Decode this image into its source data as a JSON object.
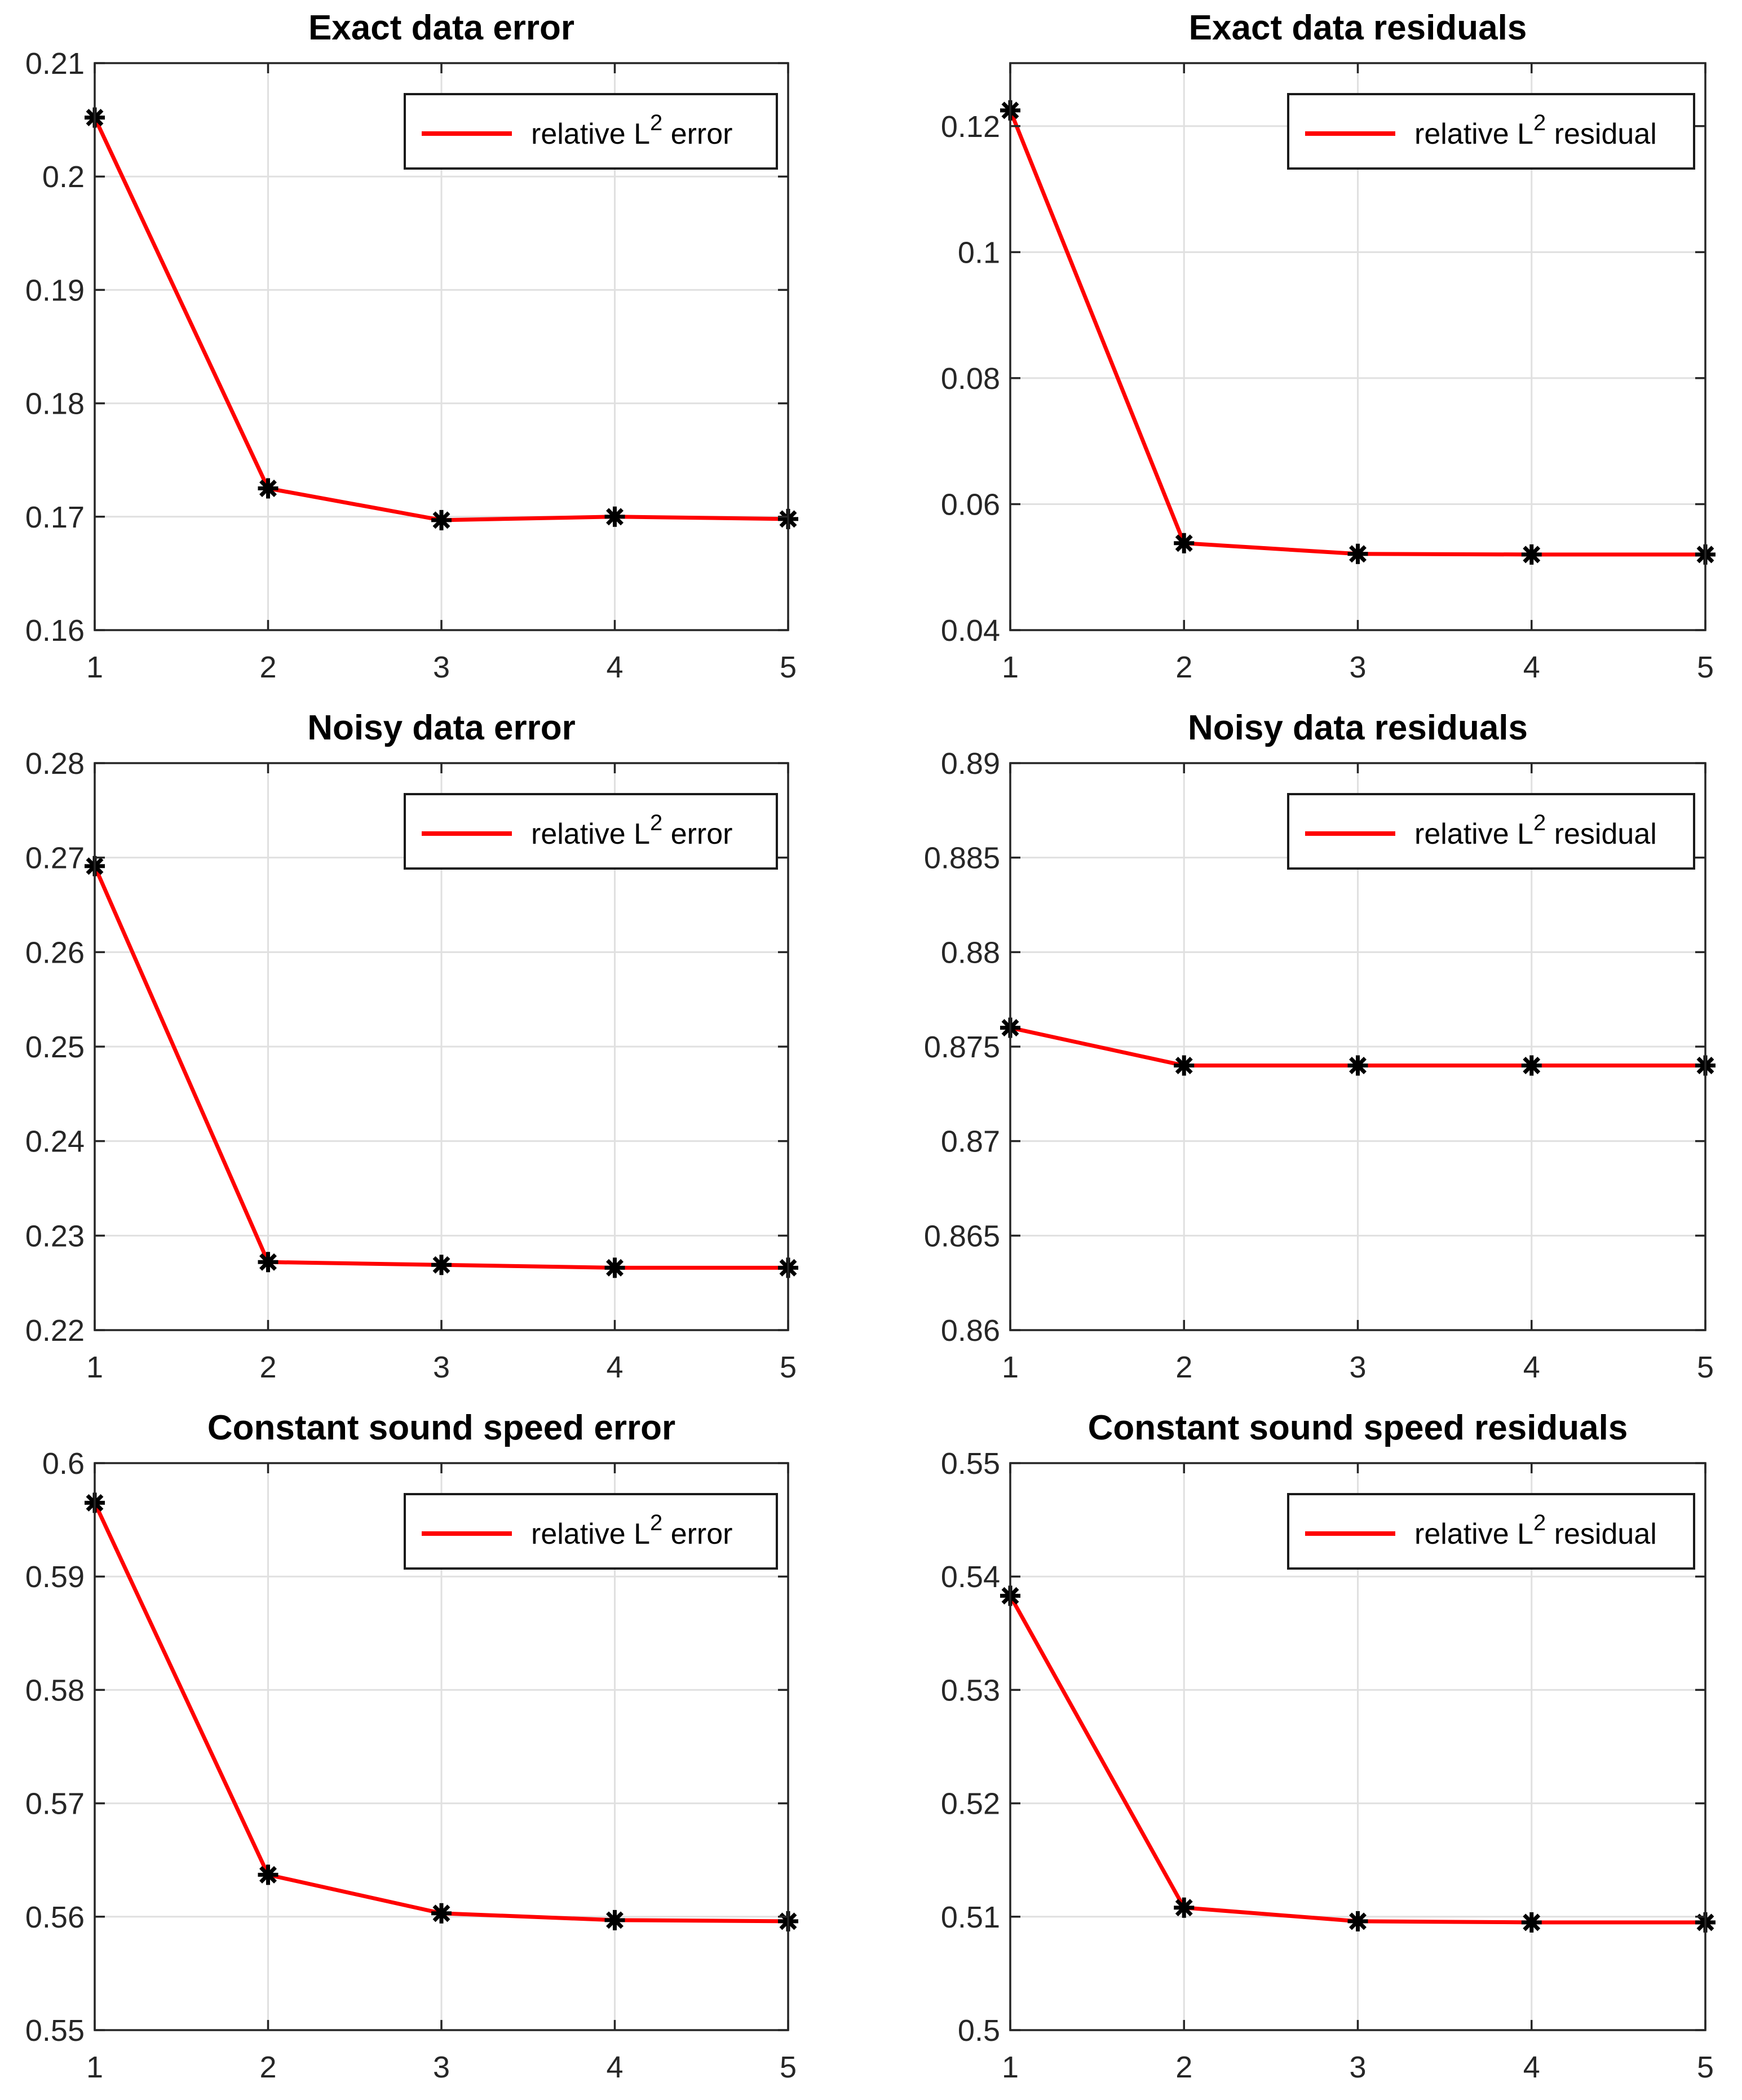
{
  "figure": {
    "background": "#FFFFFF",
    "rows": 3,
    "cols": 2
  },
  "colors": {
    "line": "#FF0000",
    "marker": "#000000",
    "grid": "#E0E0E0",
    "axis": "#262626",
    "tick_label": "#262626",
    "title": "#000000",
    "legend_border": "#1A1A1A",
    "legend_background": "#FFFFFF"
  },
  "chart_data": [
    {
      "type": "line",
      "title": "Exact data error",
      "x": [
        1,
        2,
        3,
        4,
        5
      ],
      "series": [
        {
          "name": "relative L2 error",
          "values": [
            0.2052,
            0.1725,
            0.1697,
            0.17,
            0.1698
          ]
        }
      ],
      "legend": {
        "prefix": "relative L",
        "sup": "2",
        "suffix": "error",
        "position": "top-right"
      },
      "xlim": [
        1,
        5
      ],
      "ylim": [
        0.16,
        0.21
      ],
      "xticks": [
        1,
        2,
        3,
        4,
        5
      ],
      "xtick_labels": [
        "1",
        "2",
        "3",
        "4",
        "5"
      ],
      "yticks": [
        0.16,
        0.17,
        0.18,
        0.19,
        0.2,
        0.21
      ],
      "ytick_labels": [
        "0.16",
        "0.17",
        "0.18",
        "0.19",
        "0.2",
        "0.21"
      ],
      "grid": true,
      "marker": "asterisk"
    },
    {
      "type": "line",
      "title": "Exact data residuals",
      "x": [
        1,
        2,
        3,
        4,
        5
      ],
      "series": [
        {
          "name": "relative L2 residual",
          "values": [
            0.1225,
            0.0538,
            0.0521,
            0.052,
            0.052
          ]
        }
      ],
      "legend": {
        "prefix": "relative L",
        "sup": "2",
        "suffix": "residual",
        "position": "top-right"
      },
      "xlim": [
        1,
        5
      ],
      "ylim": [
        0.04,
        0.13
      ],
      "xticks": [
        1,
        2,
        3,
        4,
        5
      ],
      "xtick_labels": [
        "1",
        "2",
        "3",
        "4",
        "5"
      ],
      "yticks": [
        0.04,
        0.06,
        0.08,
        0.1,
        0.12
      ],
      "ytick_labels": [
        "0.04",
        "0.06",
        "0.08",
        "0.1",
        "0.12"
      ],
      "grid": true,
      "marker": "asterisk"
    },
    {
      "type": "line",
      "title": "Noisy data error",
      "x": [
        1,
        2,
        3,
        4,
        5
      ],
      "series": [
        {
          "name": "relative L2 error",
          "values": [
            0.2691,
            0.2272,
            0.2269,
            0.2266,
            0.2266
          ]
        }
      ],
      "legend": {
        "prefix": "relative L",
        "sup": "2",
        "suffix": "error",
        "position": "top-right"
      },
      "xlim": [
        1,
        5
      ],
      "ylim": [
        0.22,
        0.28
      ],
      "xticks": [
        1,
        2,
        3,
        4,
        5
      ],
      "xtick_labels": [
        "1",
        "2",
        "3",
        "4",
        "5"
      ],
      "yticks": [
        0.22,
        0.23,
        0.24,
        0.25,
        0.26,
        0.27,
        0.28
      ],
      "ytick_labels": [
        "0.22",
        "0.23",
        "0.24",
        "0.25",
        "0.26",
        "0.27",
        "0.28"
      ],
      "grid": true,
      "marker": "asterisk"
    },
    {
      "type": "line",
      "title": "Noisy data residuals",
      "x": [
        1,
        2,
        3,
        4,
        5
      ],
      "series": [
        {
          "name": "relative L2 residual",
          "values": [
            0.876,
            0.874,
            0.874,
            0.874,
            0.874
          ]
        }
      ],
      "legend": {
        "prefix": "relative L",
        "sup": "2",
        "suffix": "residual",
        "position": "top-right"
      },
      "xlim": [
        1,
        5
      ],
      "ylim": [
        0.86,
        0.89
      ],
      "xticks": [
        1,
        2,
        3,
        4,
        5
      ],
      "xtick_labels": [
        "1",
        "2",
        "3",
        "4",
        "5"
      ],
      "yticks": [
        0.86,
        0.865,
        0.87,
        0.875,
        0.88,
        0.885,
        0.89
      ],
      "ytick_labels": [
        "0.86",
        "0.865",
        "0.87",
        "0.875",
        "0.88",
        "0.885",
        "0.89"
      ],
      "grid": true,
      "marker": "asterisk"
    },
    {
      "type": "line",
      "title": "Constant sound speed error",
      "x": [
        1,
        2,
        3,
        4,
        5
      ],
      "series": [
        {
          "name": "relative L2 error",
          "values": [
            0.5965,
            0.5637,
            0.5603,
            0.5597,
            0.5596
          ]
        }
      ],
      "legend": {
        "prefix": "relative L",
        "sup": "2",
        "suffix": "error",
        "position": "top-right"
      },
      "xlim": [
        1,
        5
      ],
      "ylim": [
        0.55,
        0.6
      ],
      "xticks": [
        1,
        2,
        3,
        4,
        5
      ],
      "xtick_labels": [
        "1",
        "2",
        "3",
        "4",
        "5"
      ],
      "yticks": [
        0.55,
        0.56,
        0.57,
        0.58,
        0.59,
        0.6
      ],
      "ytick_labels": [
        "0.55",
        "0.56",
        "0.57",
        "0.58",
        "0.59",
        "0.6"
      ],
      "grid": true,
      "marker": "asterisk"
    },
    {
      "type": "line",
      "title": "Constant sound speed residuals",
      "x": [
        1,
        2,
        3,
        4,
        5
      ],
      "series": [
        {
          "name": "relative L2 residual",
          "values": [
            0.5383,
            0.5108,
            0.5096,
            0.5095,
            0.5095
          ]
        }
      ],
      "legend": {
        "prefix": "relative L",
        "sup": "2",
        "suffix": "residual",
        "position": "top-right"
      },
      "xlim": [
        1,
        5
      ],
      "ylim": [
        0.5,
        0.55
      ],
      "xticks": [
        1,
        2,
        3,
        4,
        5
      ],
      "xtick_labels": [
        "1",
        "2",
        "3",
        "4",
        "5"
      ],
      "yticks": [
        0.5,
        0.51,
        0.52,
        0.53,
        0.54,
        0.55
      ],
      "ytick_labels": [
        "0.5",
        "0.51",
        "0.52",
        "0.53",
        "0.54",
        "0.55"
      ],
      "grid": true,
      "marker": "asterisk"
    }
  ]
}
